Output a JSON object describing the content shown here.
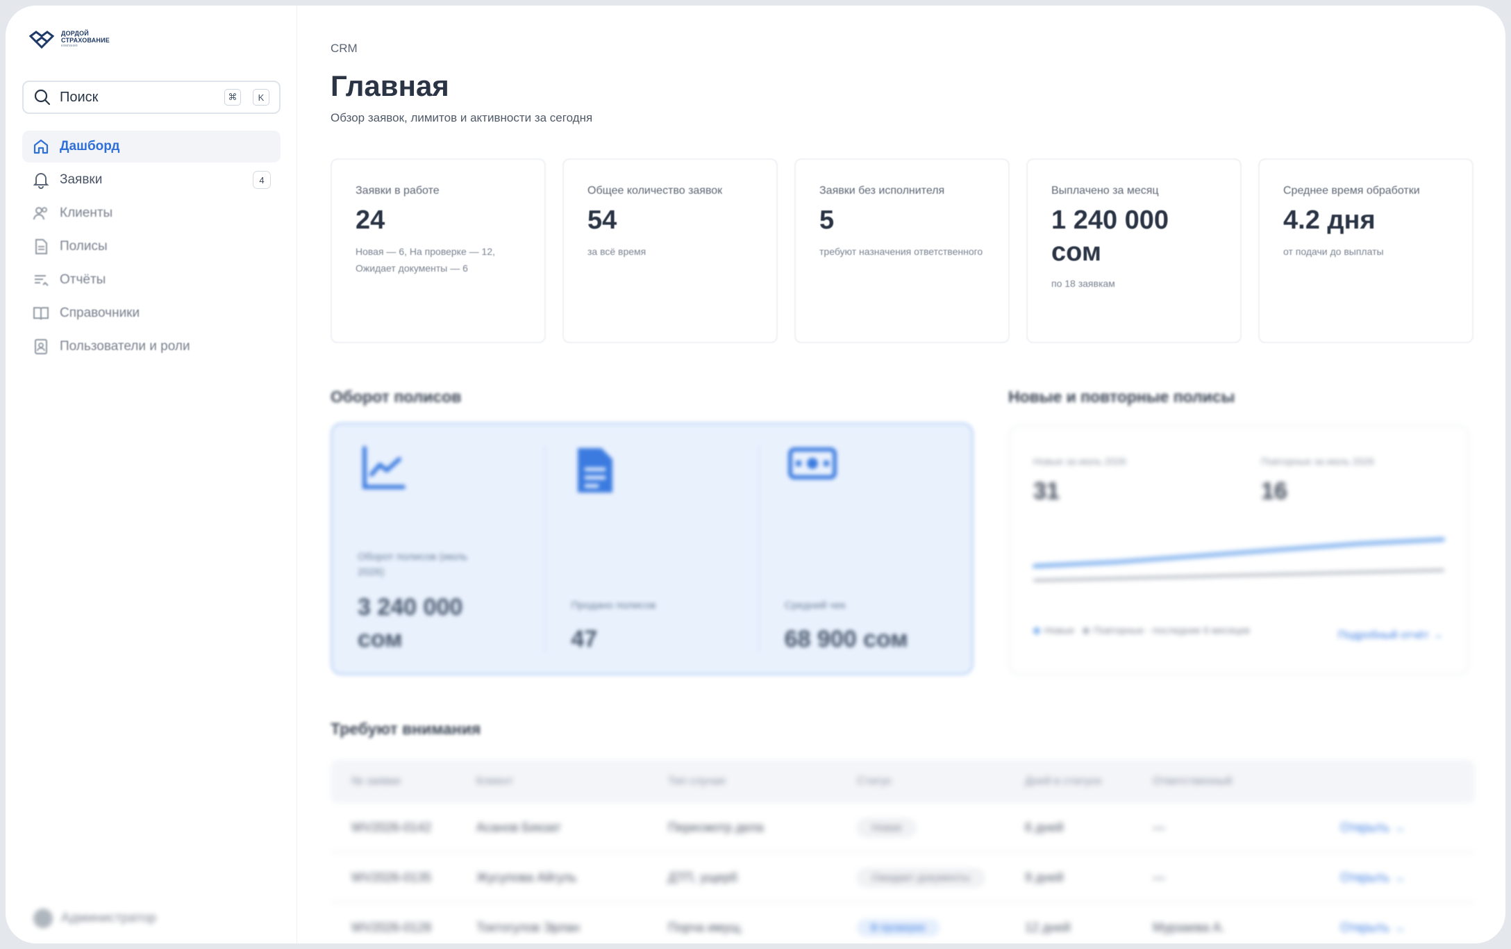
{
  "brand": {
    "name_line1": "ДОРДОЙ",
    "name_line2": "СТРАХОВАНИЕ",
    "tagline": "компания"
  },
  "sidebar": {
    "search": {
      "label": "Поиск",
      "shortcut_mod": "⌘",
      "shortcut_key": "K"
    },
    "items": [
      {
        "label": "Дашборд",
        "icon": "home-icon",
        "active": true
      },
      {
        "label": "Заявки",
        "icon": "bell-icon",
        "badge": "4"
      },
      {
        "label": "Клиенты",
        "icon": "users-icon"
      },
      {
        "label": "Полисы",
        "icon": "document-icon"
      },
      {
        "label": "Отчёты",
        "icon": "report-list-icon"
      },
      {
        "label": "Справочники",
        "icon": "book-icon"
      },
      {
        "label": "Пользователи и роли",
        "icon": "user-badge-icon"
      }
    ],
    "user": {
      "label": "Администратор"
    }
  },
  "header": {
    "breadcrumb": "CRM",
    "title": "Главная",
    "subtitle": "Обзор заявок, лимитов и активности за сегодня"
  },
  "kpis": [
    {
      "label": "Заявки в работе",
      "value": "24",
      "note": "Новая — 6, На проверке — 12, Ожидает документы — 6"
    },
    {
      "label": "Общее количество заявок",
      "value": "54",
      "note": "за всё время"
    },
    {
      "label": "Заявки без исполнителя",
      "value": "5",
      "note": "требуют назначения ответственного"
    },
    {
      "label": "Выплачено за месяц",
      "value": "1 240 000 сом",
      "note": "по 18 заявкам"
    },
    {
      "label": "Среднее время обработки",
      "value": "4.2 дня",
      "note": "от подачи до выплаты"
    }
  ],
  "turnover": {
    "title": "Оборот полисов",
    "cols": [
      {
        "icon": "line-chart-icon",
        "label": "Оборот полисов (июль 2026)",
        "value": "3 240 000 сом"
      },
      {
        "icon": "policy-document-icon",
        "label": "Продано полисов",
        "value": "47"
      },
      {
        "icon": "cash-icon",
        "label": "Средний чек",
        "value": "68 900 сом"
      }
    ]
  },
  "new_repeat": {
    "title": "Новые и повторные полисы",
    "new_label": "Новые за июль 2026",
    "new_value": "31",
    "repeat_label": "Повторные за июль 2026",
    "repeat_value": "16",
    "legend_new": "Новые",
    "legend_repeat": "Повторные · последние 6 месяцев",
    "link": "Подробный отчёт →",
    "colors": {
      "new": "#7fb0ee",
      "repeat": "#aeb5bf"
    },
    "chart_data": {
      "type": "line",
      "series": [
        {
          "name": "Новые",
          "values": [
            18,
            20,
            23,
            26,
            29,
            31
          ]
        },
        {
          "name": "Повторные",
          "values": [
            11,
            12,
            13,
            14,
            15,
            16
          ]
        }
      ],
      "ylim": [
        0,
        40
      ]
    }
  },
  "attention": {
    "title": "Требуют внимания",
    "columns": [
      "№ заявки",
      "Клиент",
      "Тип случая",
      "Статус",
      "Дней в статусе",
      "Ответственный",
      ""
    ],
    "rows": [
      {
        "id": "WV2026-0142",
        "client": "Асанов Бекзат",
        "type": "Пересмотр дела",
        "status": "Новая",
        "status_style": "gray",
        "days": "6 дней",
        "owner": "—",
        "action": "Открыть →"
      },
      {
        "id": "WV2026-0135",
        "client": "Жусупова Айгуль",
        "type": "ДТП, ущерб",
        "status": "Ожидает документы",
        "status_style": "gray",
        "days": "9 дней",
        "owner": "—",
        "action": "Открыть →"
      },
      {
        "id": "WV2026-0128",
        "client": "Токтогулов Эрлан",
        "type": "Порча имущ.",
        "status": "В проверке",
        "status_style": "blue",
        "days": "12 дней",
        "owner": "Мурзаева А.",
        "action": "Открыть →"
      }
    ]
  }
}
